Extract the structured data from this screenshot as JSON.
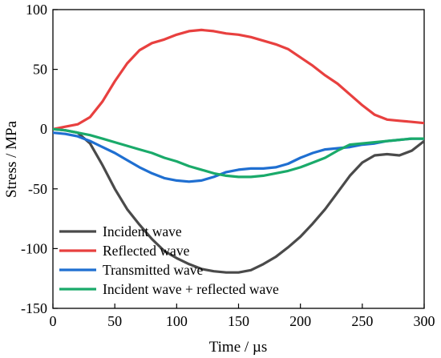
{
  "chart_data": {
    "type": "line",
    "title": "",
    "xlabel": "Time / µs",
    "ylabel": "Stress / MPa",
    "xlim": [
      0,
      300
    ],
    "ylim": [
      -150,
      100
    ],
    "xticks": [
      0,
      50,
      100,
      150,
      200,
      250,
      300
    ],
    "yticks": [
      100,
      50,
      0,
      -50,
      -100,
      -150
    ],
    "grid": false,
    "legend_position": "bottom-left",
    "series": [
      {
        "name": "Incident wave",
        "color": "#4a4a4a",
        "points": [
          [
            0,
            0
          ],
          [
            10,
            -1
          ],
          [
            20,
            -3
          ],
          [
            30,
            -12
          ],
          [
            40,
            -30
          ],
          [
            50,
            -50
          ],
          [
            60,
            -67
          ],
          [
            70,
            -80
          ],
          [
            80,
            -92
          ],
          [
            90,
            -102
          ],
          [
            100,
            -108
          ],
          [
            110,
            -113
          ],
          [
            120,
            -117
          ],
          [
            130,
            -119
          ],
          [
            140,
            -120
          ],
          [
            150,
            -120
          ],
          [
            160,
            -118
          ],
          [
            170,
            -113
          ],
          [
            180,
            -107
          ],
          [
            190,
            -99
          ],
          [
            200,
            -90
          ],
          [
            210,
            -79
          ],
          [
            220,
            -67
          ],
          [
            230,
            -53
          ],
          [
            240,
            -39
          ],
          [
            250,
            -28
          ],
          [
            260,
            -22
          ],
          [
            270,
            -21
          ],
          [
            280,
            -22
          ],
          [
            290,
            -18
          ],
          [
            300,
            -10
          ]
        ]
      },
      {
        "name": "Reflected wave",
        "color": "#e8403f",
        "points": [
          [
            0,
            0
          ],
          [
            10,
            2
          ],
          [
            20,
            4
          ],
          [
            30,
            10
          ],
          [
            40,
            23
          ],
          [
            50,
            40
          ],
          [
            60,
            55
          ],
          [
            70,
            66
          ],
          [
            80,
            72
          ],
          [
            90,
            75
          ],
          [
            100,
            79
          ],
          [
            110,
            82
          ],
          [
            120,
            83
          ],
          [
            130,
            82
          ],
          [
            140,
            80
          ],
          [
            150,
            79
          ],
          [
            160,
            77
          ],
          [
            170,
            74
          ],
          [
            180,
            71
          ],
          [
            190,
            67
          ],
          [
            200,
            60
          ],
          [
            210,
            53
          ],
          [
            220,
            45
          ],
          [
            230,
            38
          ],
          [
            240,
            29
          ],
          [
            250,
            20
          ],
          [
            260,
            12
          ],
          [
            270,
            8
          ],
          [
            280,
            7
          ],
          [
            290,
            6
          ],
          [
            300,
            5
          ]
        ]
      },
      {
        "name": "Transmitted wave",
        "color": "#1f6fd1",
        "points": [
          [
            0,
            -3
          ],
          [
            10,
            -4
          ],
          [
            20,
            -6
          ],
          [
            30,
            -10
          ],
          [
            40,
            -15
          ],
          [
            50,
            -20
          ],
          [
            60,
            -26
          ],
          [
            70,
            -32
          ],
          [
            80,
            -37
          ],
          [
            90,
            -41
          ],
          [
            100,
            -43
          ],
          [
            110,
            -44
          ],
          [
            120,
            -43
          ],
          [
            130,
            -40
          ],
          [
            140,
            -36
          ],
          [
            150,
            -34
          ],
          [
            160,
            -33
          ],
          [
            170,
            -33
          ],
          [
            180,
            -32
          ],
          [
            190,
            -29
          ],
          [
            200,
            -24
          ],
          [
            210,
            -20
          ],
          [
            220,
            -17
          ],
          [
            230,
            -16
          ],
          [
            240,
            -15
          ],
          [
            250,
            -13
          ],
          [
            260,
            -12
          ],
          [
            270,
            -10
          ],
          [
            280,
            -9
          ],
          [
            290,
            -8
          ],
          [
            300,
            -8
          ]
        ]
      },
      {
        "name": "Incident wave + reflected wave",
        "color": "#1aaa6a",
        "points": [
          [
            0,
            0
          ],
          [
            10,
            -1
          ],
          [
            20,
            -3
          ],
          [
            30,
            -5
          ],
          [
            40,
            -8
          ],
          [
            50,
            -11
          ],
          [
            60,
            -14
          ],
          [
            70,
            -17
          ],
          [
            80,
            -20
          ],
          [
            90,
            -24
          ],
          [
            100,
            -27
          ],
          [
            110,
            -31
          ],
          [
            120,
            -34
          ],
          [
            130,
            -37
          ],
          [
            140,
            -39
          ],
          [
            150,
            -40
          ],
          [
            160,
            -40
          ],
          [
            170,
            -39
          ],
          [
            180,
            -37
          ],
          [
            190,
            -35
          ],
          [
            200,
            -32
          ],
          [
            210,
            -28
          ],
          [
            220,
            -24
          ],
          [
            230,
            -18
          ],
          [
            240,
            -13
          ],
          [
            250,
            -12
          ],
          [
            260,
            -11
          ],
          [
            270,
            -10
          ],
          [
            280,
            -9
          ],
          [
            290,
            -8
          ],
          [
            300,
            -8
          ]
        ]
      }
    ]
  }
}
